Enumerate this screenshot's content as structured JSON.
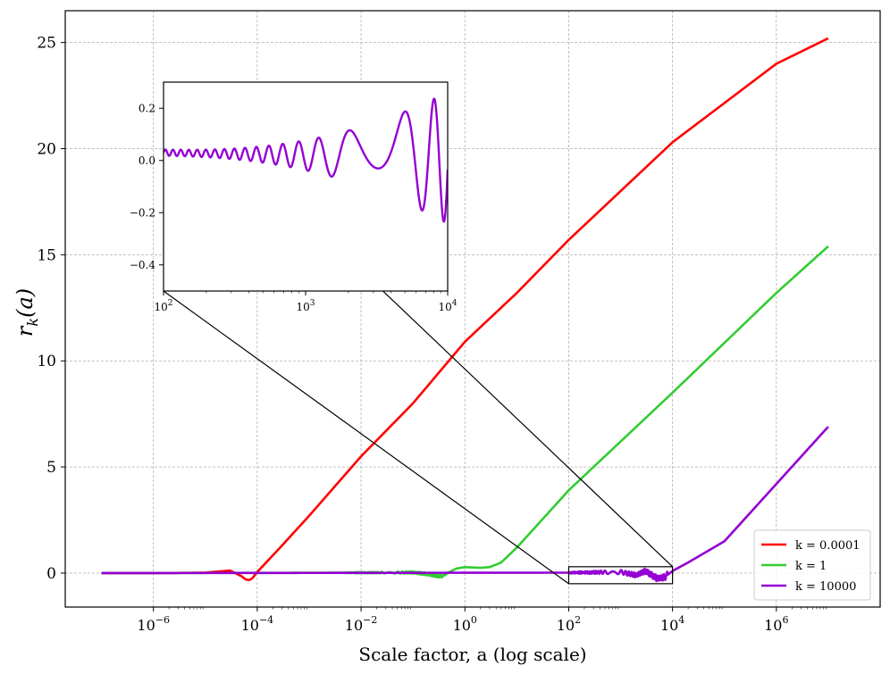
{
  "chart_data": [
    {
      "type": "line",
      "xlabel": "Scale factor, a (log scale)",
      "xscale": "log",
      "xlim": [
        2e-08,
        100000000.0
      ],
      "ylim": [
        -1.6,
        26.5
      ],
      "grid": true,
      "legend_position": "lower-right",
      "x_ticks": [
        {
          "base": "10",
          "exp": "−6",
          "value": 1e-06
        },
        {
          "base": "10",
          "exp": "−4",
          "value": 0.0001
        },
        {
          "base": "10",
          "exp": "−2",
          "value": 0.01
        },
        {
          "base": "10",
          "exp": "0",
          "value": 1
        },
        {
          "base": "10",
          "exp": "2",
          "value": 100
        },
        {
          "base": "10",
          "exp": "4",
          "value": 10000
        },
        {
          "base": "10",
          "exp": "6",
          "value": 1000000
        }
      ],
      "y_ticks": [
        {
          "label": "0",
          "value": 0
        },
        {
          "label": "5",
          "value": 5
        },
        {
          "label": "10",
          "value": 10
        },
        {
          "label": "15",
          "value": 15
        },
        {
          "label": "20",
          "value": 20
        },
        {
          "label": "25",
          "value": 25
        }
      ],
      "series": [
        {
          "name": "k = 0.0001",
          "color": "#ff0000",
          "x": [
            1e-07,
            1e-06,
            1e-05,
            3e-05,
            5e-05,
            6e-05,
            7e-05,
            8e-05,
            0.0001,
            0.0003,
            0.001,
            0.01,
            0.1,
            1,
            10,
            100,
            10000.0,
            1000000.0,
            10000000.0
          ],
          "y": [
            0,
            0,
            0.02,
            0.12,
            -0.15,
            -0.3,
            -0.33,
            -0.25,
            0.05,
            1.3,
            2.7,
            5.5,
            8.0,
            10.9,
            13.2,
            15.7,
            20.3,
            24.0,
            25.2
          ]
        },
        {
          "name": "k = 1",
          "color": "#33cc33",
          "x": [
            1e-07,
            0.01,
            0.1,
            0.2,
            0.3,
            0.4,
            0.5,
            0.7,
            1,
            2,
            3,
            5,
            10,
            100,
            10000.0,
            1000000.0,
            10000000.0
          ],
          "y": [
            0,
            0.02,
            0.03,
            -0.05,
            -0.15,
            -0.12,
            0.05,
            0.22,
            0.28,
            0.25,
            0.28,
            0.5,
            1.2,
            3.9,
            8.5,
            13.2,
            15.4
          ],
          "oscillation": {
            "from": 0.005,
            "to": 0.4,
            "amplitude": 0.06
          }
        },
        {
          "name": "k = 10000",
          "color": "#9400d3",
          "x": [
            1e-07,
            100,
            1000,
            2000,
            3000,
            5000,
            7000,
            10000,
            20000,
            100000,
            1000000,
            10000000
          ],
          "y": [
            0,
            0.02,
            0.05,
            -0.1,
            0.1,
            -0.25,
            -0.2,
            0.1,
            0.5,
            1.5,
            4.2,
            6.9
          ],
          "oscillation": {
            "from": 100,
            "to": 8000,
            "amplitude": 0.12
          }
        }
      ],
      "inset": {
        "zoom_region": {
          "xlim": [
            100,
            10000
          ],
          "ylim": [
            -0.5,
            0.3
          ]
        },
        "xscale": "log",
        "xlim": [
          100,
          10000
        ],
        "ylim": [
          -0.5,
          0.3
        ],
        "x_ticks": [
          {
            "base": "10",
            "exp": "2",
            "value": 100
          },
          {
            "base": "10",
            "exp": "3",
            "value": 1000
          },
          {
            "base": "10",
            "exp": "4",
            "value": 10000
          }
        ],
        "y_ticks": [
          {
            "label": "0.2",
            "value": 0.2
          },
          {
            "label": "0.0",
            "value": 0.0
          },
          {
            "label": "−0.2",
            "value": -0.2
          },
          {
            "label": "−0.4",
            "value": -0.4
          }
        ],
        "series_color": "#9400d3"
      }
    }
  ]
}
